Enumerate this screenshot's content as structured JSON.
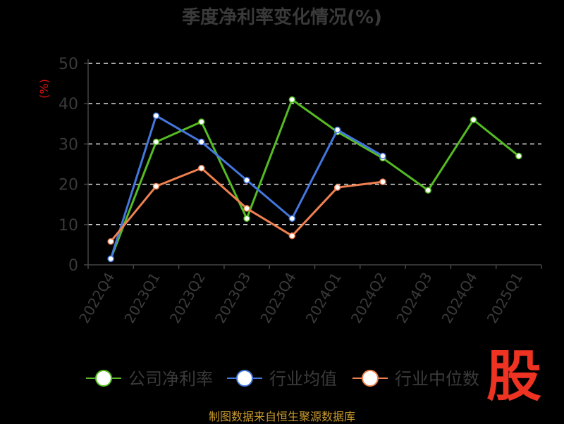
{
  "chart_data": {
    "type": "line",
    "title": "季度净利率变化情况(%)",
    "ylabel": "(%)",
    "xlabel": "",
    "ylim": [
      0,
      50
    ],
    "yticks": [
      0,
      10,
      20,
      30,
      40,
      50
    ],
    "grid": true,
    "legend_position": "bottom",
    "categories": [
      "2022Q4",
      "2023Q1",
      "2023Q2",
      "2023Q3",
      "2023Q4",
      "2024Q1",
      "2024Q2",
      "2024Q3",
      "2024Q4",
      "2025Q1"
    ],
    "series": [
      {
        "name": "公司净利率",
        "color": "#55bb22",
        "values": [
          1.5,
          30.5,
          35.5,
          11.5,
          41,
          33,
          26.5,
          18.5,
          36,
          27
        ]
      },
      {
        "name": "行业均值",
        "color": "#4477dd",
        "values": [
          1.5,
          37,
          30.5,
          21,
          11.5,
          33.5,
          27,
          null,
          null,
          null
        ]
      },
      {
        "name": "行业中位数",
        "color": "#f08050",
        "values": [
          5.8,
          19.5,
          24,
          14,
          7.2,
          19.2,
          20.6,
          null,
          null,
          null
        ]
      }
    ]
  },
  "footer": "制图数据来自恒生聚源数据库",
  "logo_text": "股"
}
